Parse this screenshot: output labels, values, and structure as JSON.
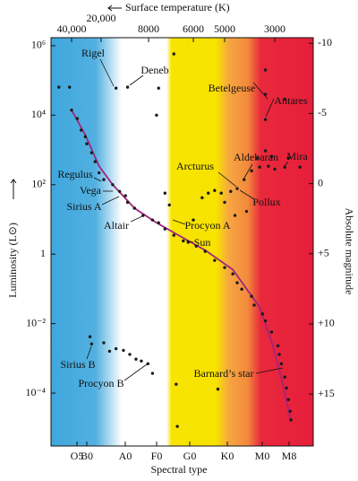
{
  "chart_data": {
    "type": "scatter",
    "x_label": "Spectral type",
    "x2_label": "Surface temperature (K)",
    "y_label": "Luminosity (L⊙)",
    "y2_label": "Absolute magnitude",
    "xscale": "log",
    "yscale": "log",
    "xlim": [
      65000,
      2000
    ],
    "xticks": [
      {
        "value": 40000,
        "label": "40,000"
      },
      {
        "value": 20000,
        "label": "20,000"
      },
      8000,
      6000,
      5000,
      3000
    ],
    "spectral_types": [
      "O5",
      "B0",
      "A0",
      "F0",
      "G0",
      "K0",
      "M0",
      "M8"
    ],
    "ylim": [
      3e-06,
      1700000
    ],
    "yticks": [
      {
        "value": 1000000,
        "label": "10⁶"
      },
      {
        "value": 10000,
        "label": "10⁴"
      },
      {
        "value": 100,
        "label": "10²"
      },
      1,
      {
        "value": 0.01,
        "label": "10⁻²"
      },
      {
        "value": 0.0001,
        "label": "10⁻⁴"
      }
    ],
    "y2lim": [
      -10.4,
      18.7
    ],
    "y2ticks": [
      -10,
      -5,
      0,
      {
        "value": 5,
        "label": "+5"
      },
      {
        "value": 10,
        "label": "+10"
      },
      {
        "value": 15,
        "label": "+15"
      }
    ],
    "color": "#1a1a1a",
    "x": [
      54000,
      42000,
      15000,
      12000,
      6800,
      7500,
      7600,
      3300,
      3300,
      3300,
      2700,
      40000,
      35000,
      32000,
      29000,
      28000,
      25000,
      23000,
      21000,
      19000,
      16000,
      14000,
      12500,
      12000,
      10500,
      8900,
      7800,
      7500,
      7200,
      6800,
      6400,
      6200,
      5900,
      5600,
      5300,
      5000,
      4600,
      4400,
      4200,
      3800,
      3700,
      3400,
      3300,
      3100,
      2900,
      2860,
      2800,
      2700,
      2650,
      2600,
      2550,
      2530,
      7200,
      7000,
      5500,
      5300,
      5100,
      4700,
      4400,
      4100,
      3800,
      3500,
      3200,
      3000,
      2700,
      3100,
      2600,
      3600,
      3300,
      2300,
      5000,
      4500,
      4000,
      5700,
      6000,
      26000,
      25000,
      19000,
      17000,
      15000,
      13000,
      11500,
      10200,
      9200,
      8100,
      7800,
      6700,
      5200,
      6650
    ],
    "values": [
      64000,
      64000,
      60000,
      64000,
      580000,
      60000,
      10000,
      200000,
      40000,
      7500,
      29000,
      14000,
      8000,
      3700,
      2400,
      1500,
      830,
      460,
      220,
      140,
      100,
      64,
      48,
      31,
      21,
      13,
      9.6,
      8,
      5.3,
      3.5,
      2.4,
      2.2,
      1.7,
      1.2,
      0.66,
      0.41,
      0.27,
      0.15,
      0.098,
      0.061,
      0.034,
      0.019,
      0.012,
      0.0057,
      0.0023,
      0.0013,
      0.0007,
      0.00029,
      0.00014,
      6.5e-05,
      3e-05,
      1.7e-05,
      57,
      26,
      57,
      68,
      57,
      64,
      77,
      140,
      250,
      320,
      340,
      280,
      320,
      650,
      580,
      580,
      940,
      320,
      31,
      13,
      17,
      42,
      9.6,
      0.0042,
      0.0026,
      0.0028,
      0.0016,
      0.0019,
      0.0017,
      0.0013,
      0.00095,
      0.00084,
      0.0007,
      0.00037,
      0.00018,
      0.00013,
      1.1e-05
    ],
    "line": {
      "color": "#a3237f",
      "x": [
        40000,
        29000,
        21000,
        16000,
        10500,
        7600,
        6600,
        5600,
        4600,
        3500,
        3100,
        2800,
        2530
      ],
      "values": [
        14000,
        2700,
        340,
        100,
        21,
        8,
        3.5,
        1.3,
        0.36,
        0.03,
        0.0031,
        0.00029,
        1.5e-05
      ]
    },
    "annotations": [
      "Rigel",
      "Deneb",
      "Betelgeuse",
      "Antares",
      "Mira",
      "Aldebaran",
      "Arcturus",
      "Pollux",
      "Regulus",
      "Vega",
      "Sirius A",
      "Altair",
      "Procyon A",
      "Sun",
      "Sirius B",
      "Procyon B",
      "Barnard’s star"
    ]
  }
}
